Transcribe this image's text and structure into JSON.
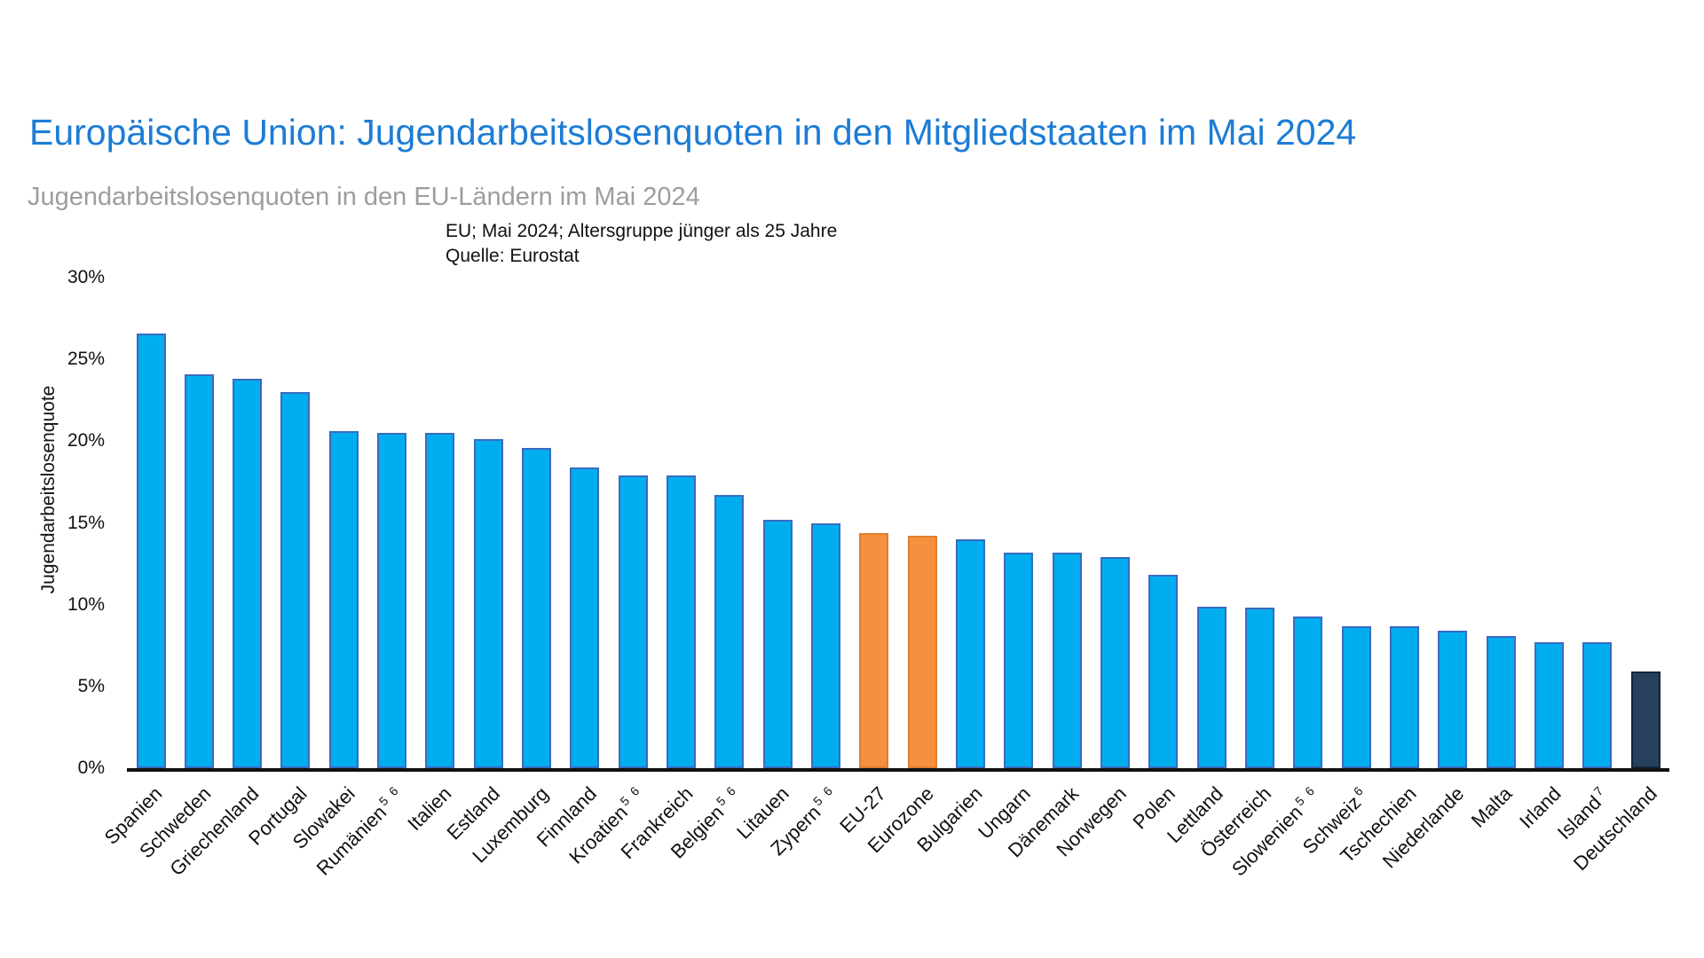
{
  "chart_data": {
    "type": "bar",
    "title": "Europäische Union: Jugendarbeitslosenquoten in den Mitgliedstaaten im Mai 2024",
    "subtitle": "Jugendarbeitslosenquoten in den EU-Ländern im Mai 2024",
    "annotations": [
      "EU; Mai 2024; Altersgruppe jünger als 25 Jahre",
      "Quelle: Eurostat"
    ],
    "xlabel": "",
    "ylabel": "Jugendarbeitslosenquote",
    "ylim": [
      0,
      30
    ],
    "yticks": [
      "0%",
      "5%",
      "10%",
      "15%",
      "20%",
      "25%",
      "30%"
    ],
    "grid": false,
    "legend": "none",
    "categories": [
      {
        "label": "Spanien",
        "sup": ""
      },
      {
        "label": "Schweden",
        "sup": ""
      },
      {
        "label": "Griechenland",
        "sup": ""
      },
      {
        "label": "Portugal",
        "sup": ""
      },
      {
        "label": "Slowakei",
        "sup": ""
      },
      {
        "label": "Rumänien",
        "sup": "5 6"
      },
      {
        "label": "Italien",
        "sup": ""
      },
      {
        "label": "Estland",
        "sup": ""
      },
      {
        "label": "Luxemburg",
        "sup": ""
      },
      {
        "label": "Finnland",
        "sup": ""
      },
      {
        "label": "Kroatien",
        "sup": "5 6"
      },
      {
        "label": "Frankreich",
        "sup": ""
      },
      {
        "label": "Belgien",
        "sup": "5 6"
      },
      {
        "label": "Litauen",
        "sup": ""
      },
      {
        "label": "Zypern",
        "sup": "5 6"
      },
      {
        "label": "EU-27",
        "sup": ""
      },
      {
        "label": "Eurozone",
        "sup": ""
      },
      {
        "label": "Bulgarien",
        "sup": ""
      },
      {
        "label": "Ungarn",
        "sup": ""
      },
      {
        "label": "Dänemark",
        "sup": ""
      },
      {
        "label": "Norwegen",
        "sup": ""
      },
      {
        "label": "Polen",
        "sup": ""
      },
      {
        "label": "Lettland",
        "sup": ""
      },
      {
        "label": "Österreich",
        "sup": ""
      },
      {
        "label": "Slowenien",
        "sup": "5 6"
      },
      {
        "label": "Schweiz",
        "sup": "6"
      },
      {
        "label": "Tschechien",
        "sup": ""
      },
      {
        "label": "Niederlande",
        "sup": ""
      },
      {
        "label": "Malta",
        "sup": ""
      },
      {
        "label": "Irland",
        "sup": ""
      },
      {
        "label": "Island",
        "sup": "7"
      },
      {
        "label": "Deutschland",
        "sup": ""
      }
    ],
    "values": [
      26.6,
      24.1,
      23.8,
      23.0,
      20.6,
      20.5,
      20.5,
      20.1,
      19.6,
      18.4,
      17.9,
      17.9,
      16.7,
      15.2,
      15.0,
      14.4,
      14.2,
      14.0,
      13.2,
      13.2,
      12.9,
      11.8,
      9.9,
      9.8,
      9.3,
      8.7,
      8.7,
      8.4,
      8.1,
      7.7,
      7.7,
      5.9
    ],
    "bar_colors": [
      "blue",
      "blue",
      "blue",
      "blue",
      "blue",
      "blue",
      "blue",
      "blue",
      "blue",
      "blue",
      "blue",
      "blue",
      "blue",
      "blue",
      "blue",
      "orange",
      "orange",
      "blue",
      "blue",
      "blue",
      "blue",
      "blue",
      "blue",
      "blue",
      "blue",
      "blue",
      "blue",
      "blue",
      "blue",
      "blue",
      "blue",
      "navy"
    ],
    "colors": {
      "blue": "#00aeef",
      "blue_stroke": "#3a6bc0",
      "orange": "#f5913e",
      "orange_stroke": "#e07e2d",
      "navy": "#25415e",
      "navy_stroke": "#152639",
      "title": "#1c7cd5",
      "subtitle": "#9d9d9d",
      "axis": "#111111"
    }
  }
}
